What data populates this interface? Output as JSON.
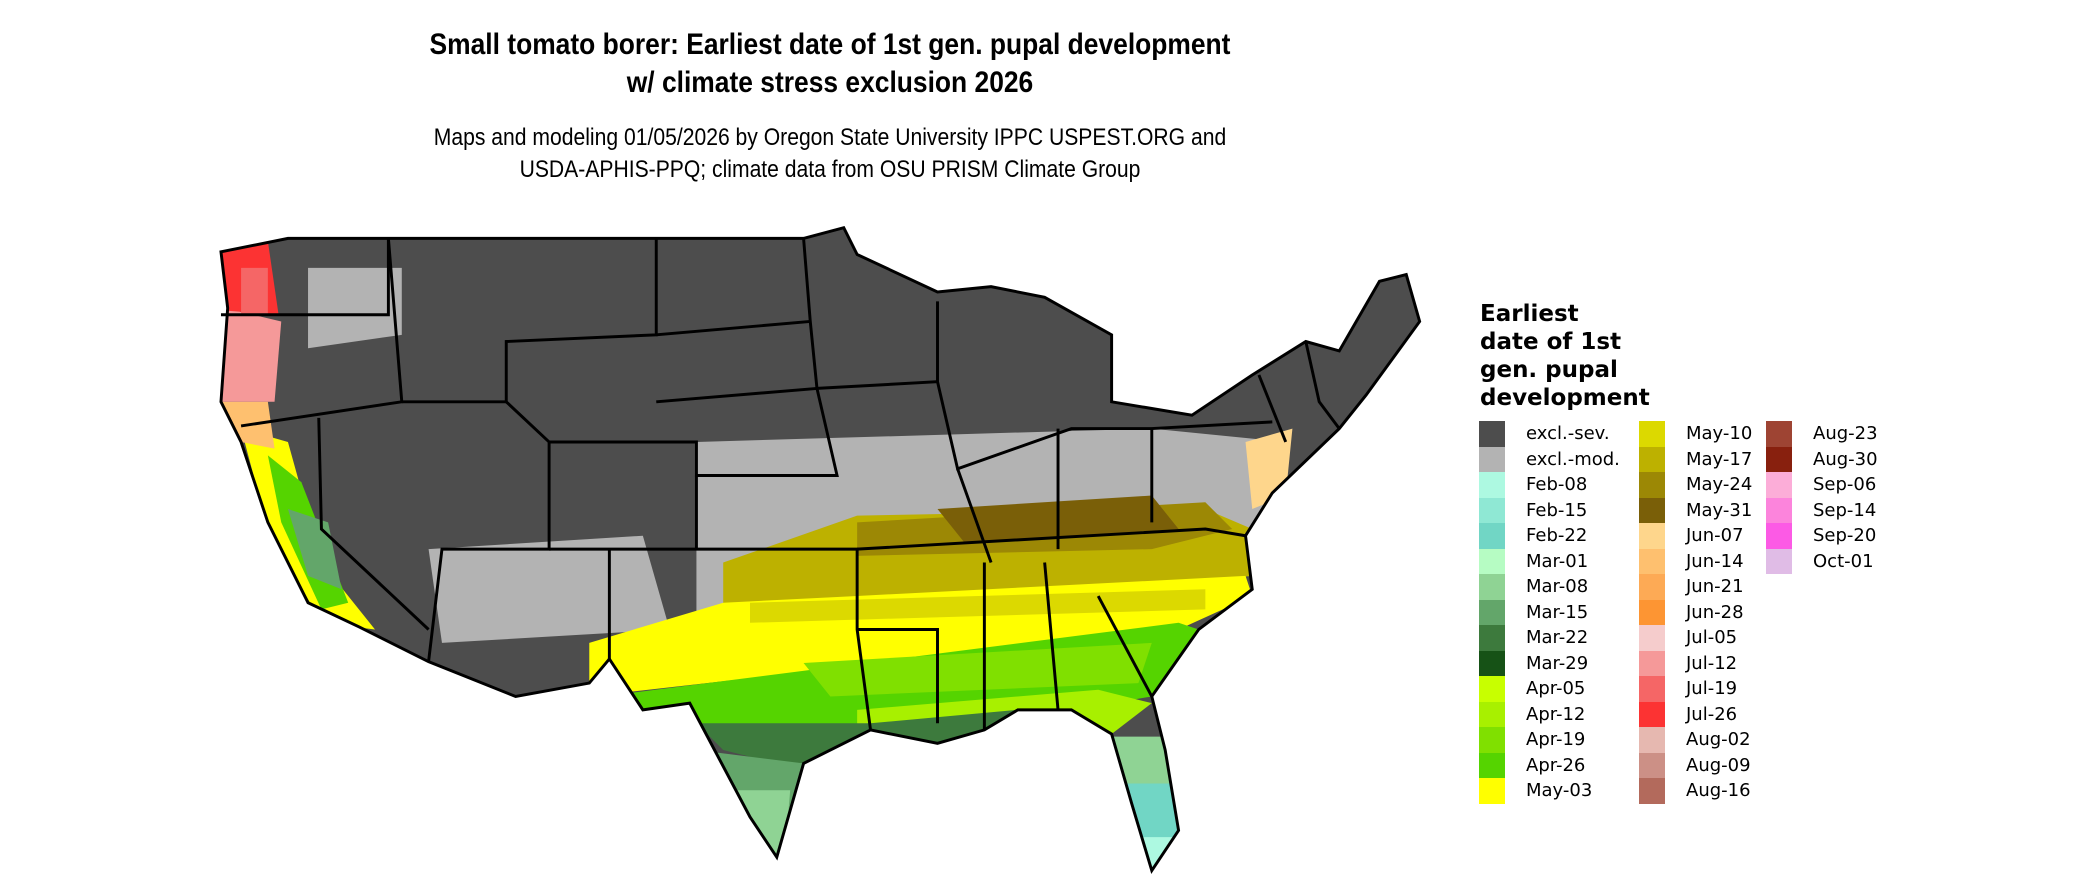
{
  "title": {
    "line1": "Small tomato borer: Earliest date of 1st gen. pupal development",
    "line2": "w/ climate stress exclusion 2026"
  },
  "subtitle": {
    "line1": "Maps and modeling 01/05/2026 by Oregon State University IPPC USPEST.ORG and",
    "line2": "USDA-APHIS-PPQ; climate data from OSU PRISM Climate Group"
  },
  "legend": {
    "title_lines": [
      "Earliest",
      "date of 1st",
      "gen. pupal",
      "development"
    ],
    "columns": [
      [
        {
          "label": "excl.-sev.",
          "color": "#4d4d4d"
        },
        {
          "label": "excl.-mod.",
          "color": "#b3b3b3"
        },
        {
          "label": "Feb-08",
          "color": "#adf9e1"
        },
        {
          "label": "Feb-15",
          "color": "#8fe8d4"
        },
        {
          "label": "Feb-22",
          "color": "#71d6c5"
        },
        {
          "label": "Mar-01",
          "color": "#b6fcc3"
        },
        {
          "label": "Mar-08",
          "color": "#8fd394"
        },
        {
          "label": "Mar-15",
          "color": "#63a66a"
        },
        {
          "label": "Mar-22",
          "color": "#3d7a3d"
        },
        {
          "label": "Mar-29",
          "color": "#165216"
        },
        {
          "label": "Apr-05",
          "color": "#c8ff00"
        },
        {
          "label": "Apr-12",
          "color": "#a8f000"
        },
        {
          "label": "Apr-19",
          "color": "#80e000"
        },
        {
          "label": "Apr-26",
          "color": "#55d400"
        },
        {
          "label": "May-03",
          "color": "#ffff00"
        }
      ],
      [
        {
          "label": "May-10",
          "color": "#dcd900"
        },
        {
          "label": "May-17",
          "color": "#bdb100"
        },
        {
          "label": "May-24",
          "color": "#9c8805"
        },
        {
          "label": "May-31",
          "color": "#7a5f08"
        },
        {
          "label": "Jun-07",
          "color": "#fed68c"
        },
        {
          "label": "Jun-14",
          "color": "#fec06f"
        },
        {
          "label": "Jun-21",
          "color": "#fdaa55"
        },
        {
          "label": "Jun-28",
          "color": "#fd9533"
        },
        {
          "label": "Jul-05",
          "color": "#f5cccc"
        },
        {
          "label": "Jul-12",
          "color": "#f59999"
        },
        {
          "label": "Jul-19",
          "color": "#f56666"
        },
        {
          "label": "Jul-26",
          "color": "#fc3333"
        },
        {
          "label": "Aug-02",
          "color": "#e6b8b0"
        },
        {
          "label": "Aug-09",
          "color": "#cc9086"
        },
        {
          "label": "Aug-16",
          "color": "#b36a5c"
        }
      ],
      [
        {
          "label": "Aug-23",
          "color": "#9e4433"
        },
        {
          "label": "Aug-30",
          "color": "#88200e"
        },
        {
          "label": "Sep-06",
          "color": "#fcadd8"
        },
        {
          "label": "Sep-14",
          "color": "#fc84dc"
        },
        {
          "label": "Sep-20",
          "color": "#fc5ae5"
        },
        {
          "label": "Oct-01",
          "color": "#e0bce6"
        }
      ]
    ]
  }
}
